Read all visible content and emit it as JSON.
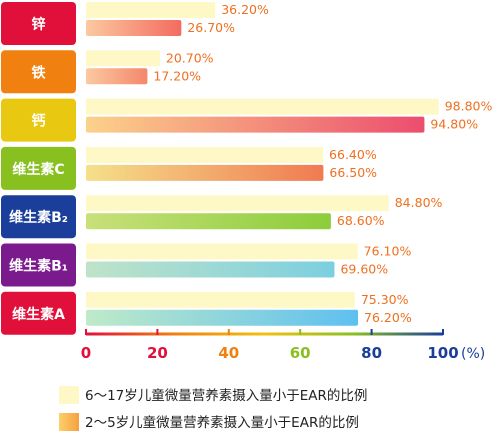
{
  "chart_data": {
    "type": "bar",
    "orientation": "horizontal",
    "categories": [
      "锌",
      "铁",
      "钙",
      "维生素C",
      "维生素B₂",
      "维生素B₁",
      "维生素A"
    ],
    "category_colors": [
      "#e0103a",
      "#f08010",
      "#e8c810",
      "#88c020",
      "#1a3e9a",
      "#7a1a8c",
      "#e0103a"
    ],
    "series": [
      {
        "name": "6～17岁儿童微量营养素摄入量小于EAR的比例",
        "values": [
          36.2,
          20.7,
          98.8,
          66.4,
          84.8,
          76.1,
          75.3
        ],
        "value_labels": [
          "36.20%",
          "20.70%",
          "98.80%",
          "66.40%",
          "84.80%",
          "76.10%",
          "75.30%"
        ],
        "color": "#fdf8c6"
      },
      {
        "name": "2～5岁儿童微量营养素摄入量小于EAR的比例",
        "values": [
          26.7,
          17.2,
          94.8,
          66.5,
          68.6,
          69.6,
          76.2
        ],
        "value_labels": [
          "26.70%",
          "17.20%",
          "94.80%",
          "66.50%",
          "68.60%",
          "69.60%",
          "76.20%"
        ],
        "colors_per_bar": [
          [
            "#fbc9a0",
            "#f36b5f"
          ],
          [
            "#fbc9a0",
            "#f4876a"
          ],
          [
            "#fbd28a",
            "#ec4d6e"
          ],
          [
            "#f5e08a",
            "#f07a52"
          ],
          [
            "#c8e07a",
            "#8ccd3a"
          ],
          [
            "#bfe3c8",
            "#7ccfe0"
          ],
          [
            "#bfeac8",
            "#5ec0f0"
          ]
        ]
      }
    ],
    "value_label_color": "#f07020",
    "x_ticks": [
      "0",
      "20",
      "40",
      "60",
      "80",
      "100"
    ],
    "x_unit": "(%)",
    "tick_colors": [
      "#e0103a",
      "#e0103a",
      "#f08010",
      "#88c020",
      "#1a3e9a",
      "#1a3e9a"
    ],
    "xlim": [
      0,
      100
    ],
    "axis_colors": [
      "#e0103a",
      "#f08010",
      "#f0c010",
      "#88c020",
      "#1a3e9a"
    ],
    "legend_placement": "bottom"
  }
}
